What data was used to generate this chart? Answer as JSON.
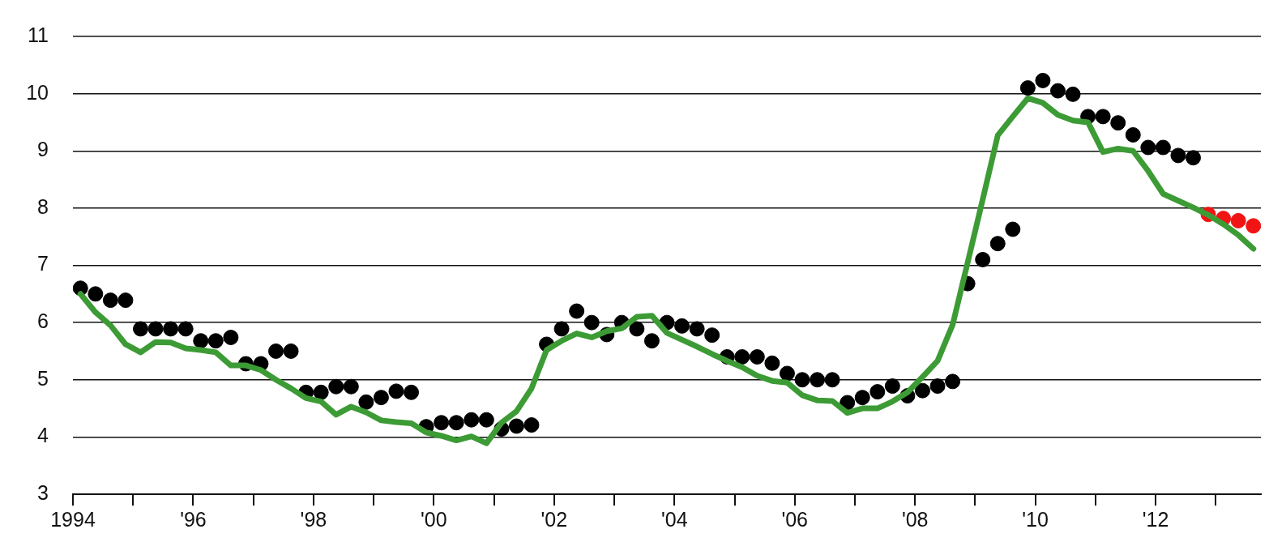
{
  "chart_data": {
    "type": "line",
    "x": [
      1994.125,
      1994.375,
      1994.625,
      1994.875,
      1995.125,
      1995.375,
      1995.625,
      1995.875,
      1996.125,
      1996.375,
      1996.625,
      1996.875,
      1997.125,
      1997.375,
      1997.625,
      1997.875,
      1998.125,
      1998.375,
      1998.625,
      1998.875,
      1999.125,
      1999.375,
      1999.625,
      1999.875,
      2000.125,
      2000.375,
      2000.625,
      2000.875,
      2001.125,
      2001.375,
      2001.625,
      2001.875,
      2002.125,
      2002.375,
      2002.625,
      2002.875,
      2003.125,
      2003.375,
      2003.625,
      2003.875,
      2004.125,
      2004.375,
      2004.625,
      2004.875,
      2005.125,
      2005.375,
      2005.625,
      2005.875,
      2006.125,
      2006.375,
      2006.625,
      2006.875,
      2007.125,
      2007.375,
      2007.625,
      2007.875,
      2008.125,
      2008.375,
      2008.625,
      2008.875,
      2009.125,
      2009.375,
      2009.625,
      2009.875,
      2010.125,
      2010.375,
      2010.625,
      2010.875,
      2011.125,
      2011.375,
      2011.625,
      2011.875,
      2012.125,
      2012.375,
      2012.625,
      2012.875,
      2013.125,
      2013.375,
      2013.625
    ],
    "series": [
      {
        "color": "#3d9b35",
        "values": [
          6.5,
          6.18,
          5.95,
          5.62,
          5.48,
          5.66,
          5.65,
          5.55,
          5.52,
          5.48,
          5.25,
          5.25,
          5.17,
          5.0,
          4.85,
          4.68,
          4.62,
          4.39,
          4.53,
          4.43,
          4.29,
          4.26,
          4.24,
          4.08,
          4.02,
          3.94,
          4.01,
          3.89,
          4.25,
          4.45,
          4.85,
          5.52,
          5.68,
          5.81,
          5.74,
          5.85,
          5.9,
          6.1,
          6.12,
          5.82,
          5.7,
          5.58,
          5.45,
          5.33,
          5.22,
          5.07,
          4.98,
          4.95,
          4.73,
          4.64,
          4.63,
          4.42,
          4.5,
          4.5,
          4.62,
          4.78,
          5.05,
          5.33,
          5.96,
          7.05,
          8.15,
          9.27,
          9.6,
          9.92,
          9.84,
          9.63,
          9.53,
          9.5,
          8.98,
          9.04,
          9.0,
          8.65,
          8.25,
          8.13,
          8.01,
          7.88,
          7.72,
          7.53,
          7.29
        ]
      },
      {
        "type": "scatter",
        "color": "#000000",
        "marker": "circle",
        "values": [
          6.6,
          6.5,
          6.39,
          6.39,
          5.89,
          5.89,
          5.89,
          5.89,
          5.68,
          5.68,
          5.74,
          5.28,
          5.28,
          5.5,
          5.5,
          4.78,
          4.78,
          4.88,
          4.88,
          4.61,
          4.69,
          4.8,
          4.78,
          4.18,
          4.25,
          4.25,
          4.3,
          4.3,
          4.14,
          4.19,
          4.21,
          5.62,
          5.89,
          6.2,
          6.0,
          5.79,
          6.0,
          5.89,
          5.68,
          6.0,
          5.94,
          5.89,
          5.78,
          5.4,
          5.4,
          5.4,
          5.29,
          5.11,
          5.0,
          5.0,
          5.0,
          4.6,
          4.69,
          4.79,
          4.89,
          4.72,
          4.81,
          4.89,
          4.97,
          6.68,
          7.1,
          7.38,
          7.63,
          10.1,
          10.23,
          10.05,
          9.99,
          9.6,
          9.6,
          9.49,
          9.28,
          9.06,
          9.06,
          8.92,
          8.88,
          null,
          null,
          null,
          null
        ]
      },
      {
        "type": "scatter",
        "color": "#f01414",
        "marker": "circle",
        "values": [
          null,
          null,
          null,
          null,
          null,
          null,
          null,
          null,
          null,
          null,
          null,
          null,
          null,
          null,
          null,
          null,
          null,
          null,
          null,
          null,
          null,
          null,
          null,
          null,
          null,
          null,
          null,
          null,
          null,
          null,
          null,
          null,
          null,
          null,
          null,
          null,
          null,
          null,
          null,
          null,
          null,
          null,
          null,
          null,
          null,
          null,
          null,
          null,
          null,
          null,
          null,
          null,
          null,
          null,
          null,
          null,
          null,
          null,
          null,
          null,
          null,
          null,
          null,
          null,
          null,
          null,
          null,
          null,
          null,
          null,
          null,
          null,
          null,
          null,
          null,
          7.89,
          7.82,
          7.78,
          7.69
        ]
      }
    ],
    "xlim": [
      1994,
      2013.75
    ],
    "xticks": [
      {
        "value": 1994,
        "label": "1994"
      },
      {
        "value": 1995,
        "label": null
      },
      {
        "value": 1996,
        "label": "'96"
      },
      {
        "value": 1997,
        "label": null
      },
      {
        "value": 1998,
        "label": "'98"
      },
      {
        "value": 1999,
        "label": null
      },
      {
        "value": 2000,
        "label": "'00"
      },
      {
        "value": 2001,
        "label": null
      },
      {
        "value": 2002,
        "label": "'02"
      },
      {
        "value": 2003,
        "label": null
      },
      {
        "value": 2004,
        "label": "'04"
      },
      {
        "value": 2005,
        "label": null
      },
      {
        "value": 2006,
        "label": "'06"
      },
      {
        "value": 2007,
        "label": null
      },
      {
        "value": 2008,
        "label": "'08"
      },
      {
        "value": 2009,
        "label": null
      },
      {
        "value": 2010,
        "label": "'10"
      },
      {
        "value": 2011,
        "label": null
      },
      {
        "value": 2012,
        "label": "'12"
      },
      {
        "value": 2013,
        "label": null
      }
    ],
    "ylim": [
      3,
      11
    ],
    "yticks": [
      3,
      4,
      5,
      6,
      7,
      8,
      9,
      10,
      11
    ],
    "grid": "y",
    "legend": false
  }
}
